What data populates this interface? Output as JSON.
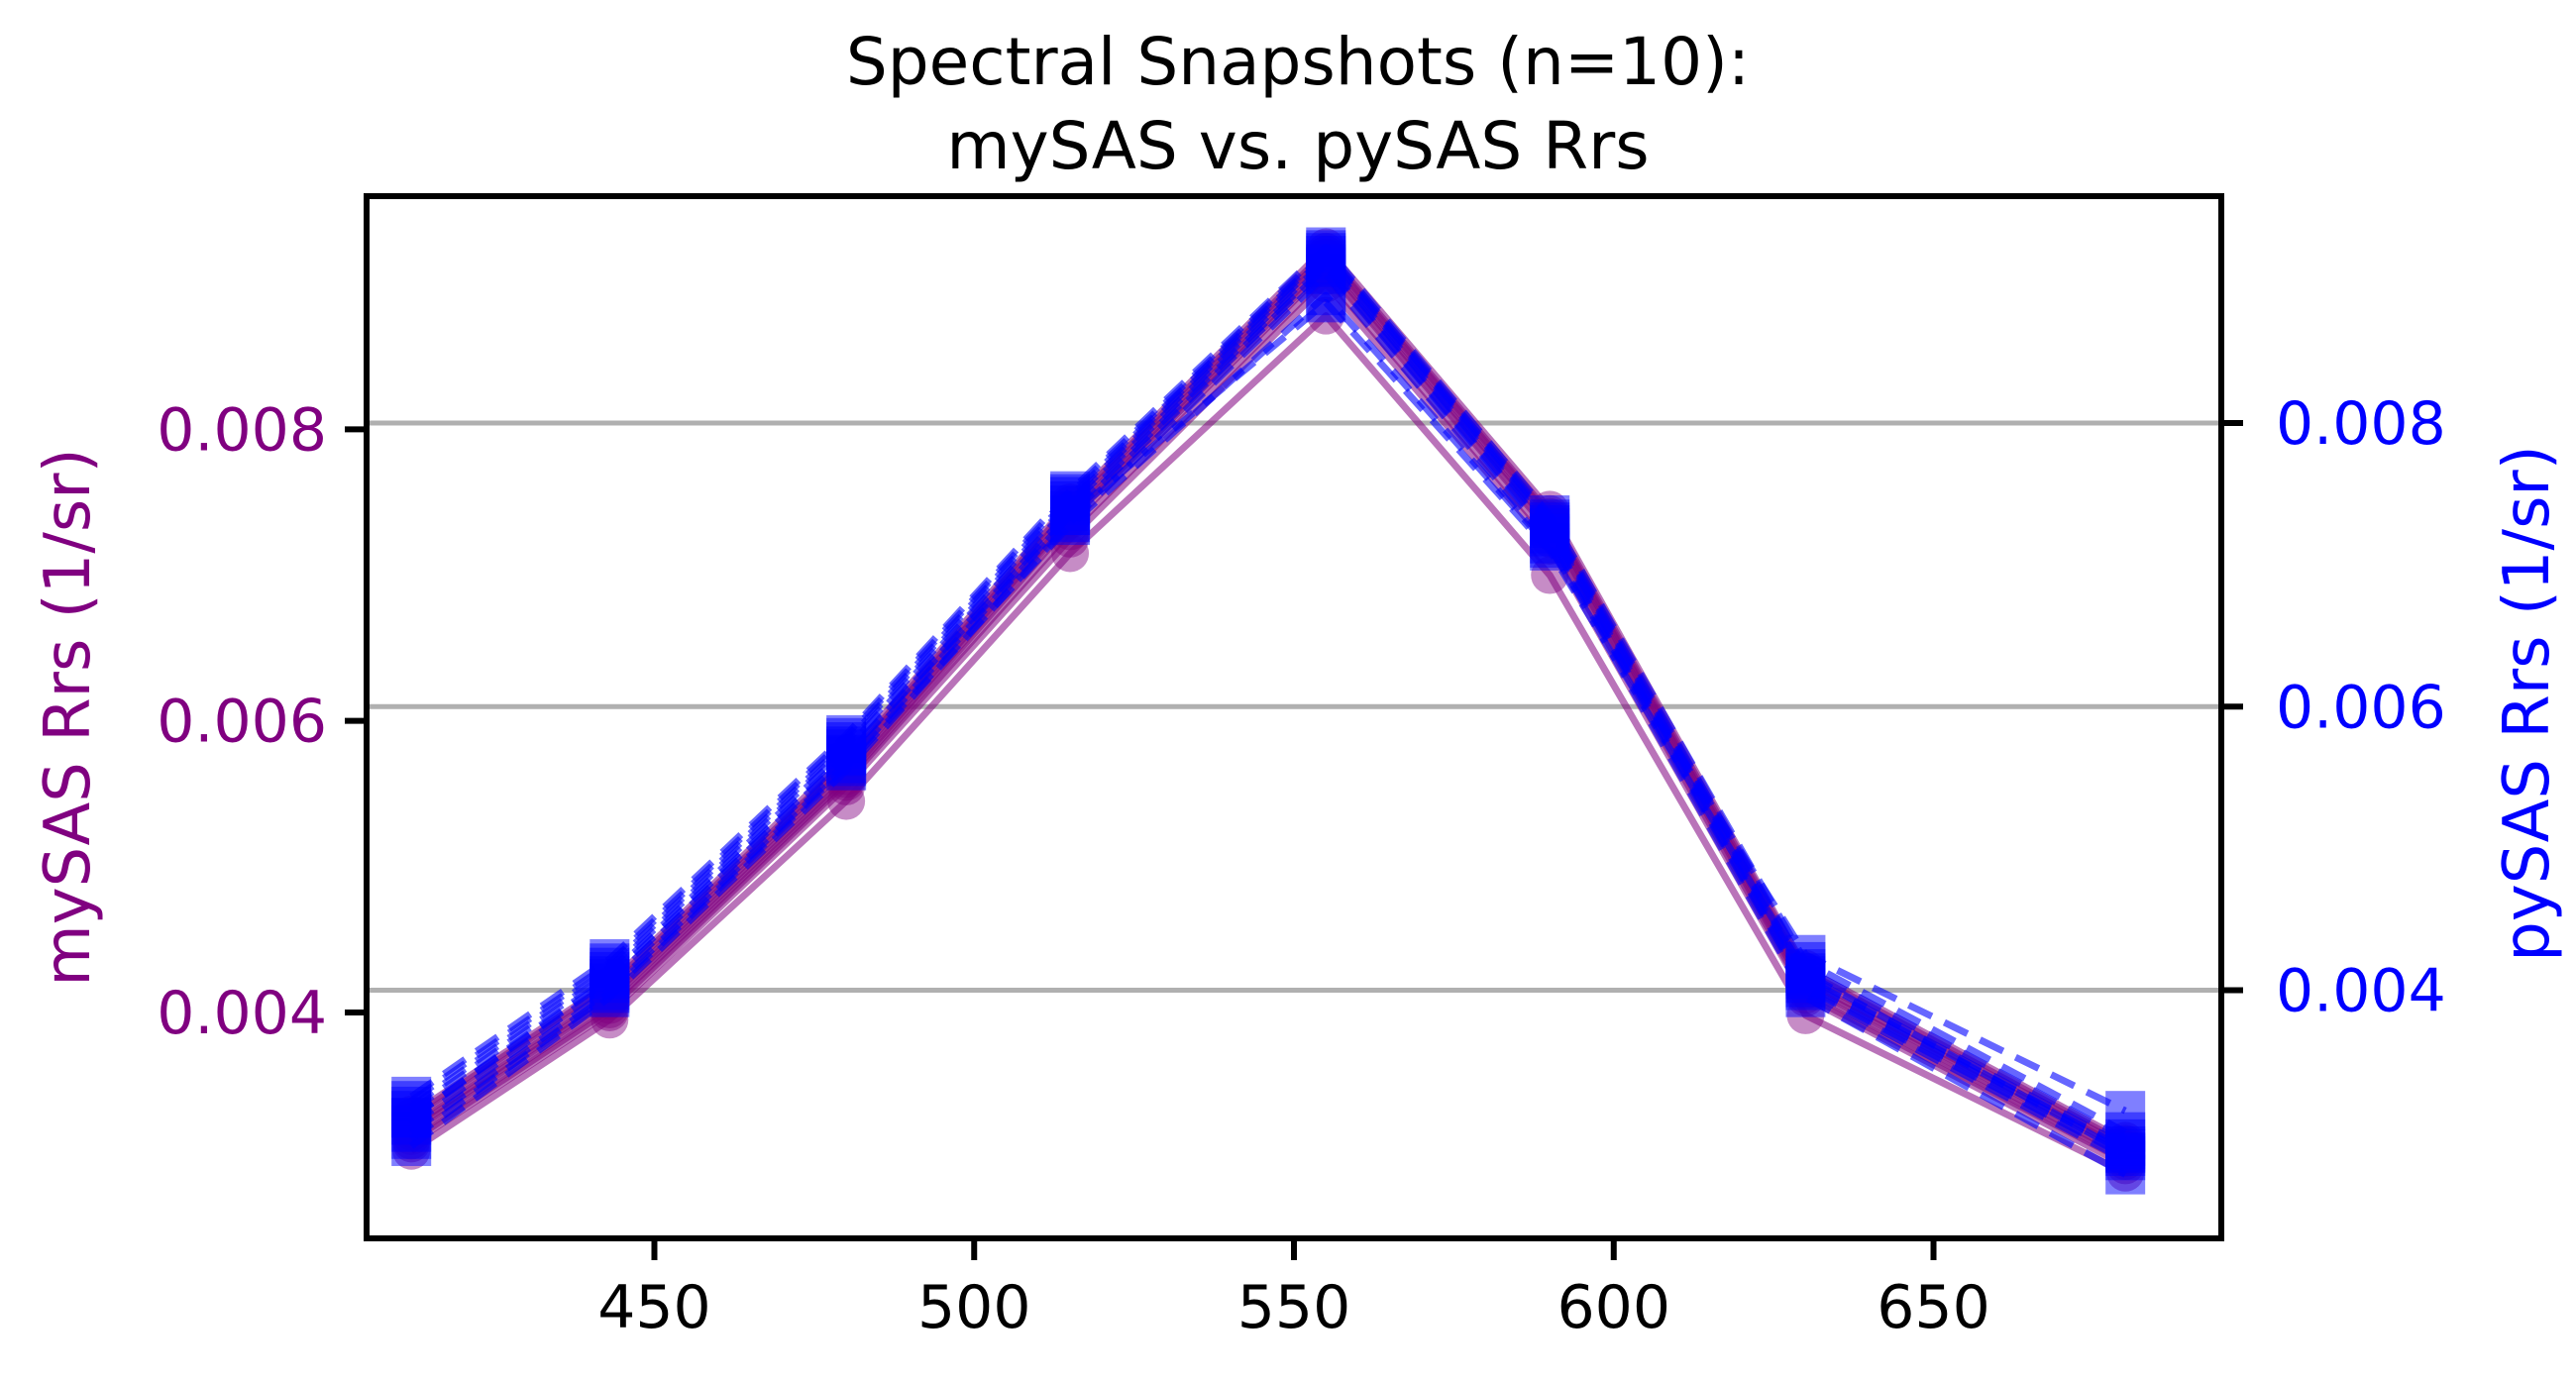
{
  "chart_data": {
    "type": "line",
    "title_line1": "Spectral Snapshots (n=10):",
    "title_line2": "mySAS vs. pySAS Rrs",
    "xlabel": "",
    "ylabel_left": "mySAS Rrs (1/sr)",
    "ylabel_right": "pySAS Rrs (1/sr)",
    "x": [
      412,
      443,
      480,
      515,
      555,
      590,
      630,
      680
    ],
    "xlim": [
      405,
      695
    ],
    "x_ticks": [
      450,
      500,
      550,
      600,
      650
    ],
    "x_tick_labels": [
      "450",
      "500",
      "550",
      "600",
      "650"
    ],
    "left_axis": {
      "ylim": [
        0.00245,
        0.0096
      ],
      "ticks": [
        0.004,
        0.006,
        0.008
      ],
      "tick_labels": [
        "0.004",
        "0.006",
        "0.008"
      ],
      "color": "#800080",
      "grid": false
    },
    "right_axis": {
      "ylim": [
        0.00225,
        0.0096
      ],
      "ticks": [
        0.004,
        0.006,
        0.008
      ],
      "tick_labels": [
        "0.004",
        "0.006",
        "0.008"
      ],
      "color": "#0000ff",
      "grid": true
    },
    "mysas_series": [
      {
        "values": [
          0.0031,
          0.004,
          0.00555,
          0.00725,
          0.009,
          0.0072,
          0.0041,
          0.00295
        ]
      },
      {
        "values": [
          0.00305,
          0.00395,
          0.00545,
          0.00715,
          0.00878,
          0.007,
          0.00398,
          0.0029
        ]
      },
      {
        "values": [
          0.00315,
          0.00405,
          0.0056,
          0.00735,
          0.0091,
          0.0073,
          0.00415,
          0.003
        ]
      },
      {
        "values": [
          0.0032,
          0.0041,
          0.00565,
          0.0074,
          0.00915,
          0.00735,
          0.0042,
          0.00305
        ]
      },
      {
        "values": [
          0.00325,
          0.00415,
          0.0057,
          0.00745,
          0.0092,
          0.0074,
          0.00425,
          0.00308
        ]
      },
      {
        "values": [
          0.00318,
          0.00408,
          0.00562,
          0.00738,
          0.00912,
          0.00732,
          0.00418,
          0.00302
        ]
      },
      {
        "values": [
          0.00322,
          0.00412,
          0.00568,
          0.00742,
          0.00918,
          0.00738,
          0.00422,
          0.00306
        ]
      },
      {
        "values": [
          0.00312,
          0.00402,
          0.00558,
          0.0073,
          0.00905,
          0.00725,
          0.00412,
          0.00298
        ]
      },
      {
        "values": [
          0.00328,
          0.00418,
          0.00572,
          0.00748,
          0.00922,
          0.00742,
          0.00428,
          0.0031
        ]
      },
      {
        "values": [
          0.0033,
          0.0042,
          0.00575,
          0.0075,
          0.00925,
          0.00745,
          0.0043,
          0.00312
        ]
      }
    ],
    "pysas_series": [
      {
        "values": [
          0.0029,
          0.00395,
          0.00555,
          0.0073,
          0.00905,
          0.00715,
          0.00395,
          0.0027
        ]
      },
      {
        "values": [
          0.003,
          0.004,
          0.0056,
          0.00735,
          0.0091,
          0.0072,
          0.004,
          0.0028
        ]
      },
      {
        "values": [
          0.00305,
          0.00405,
          0.00565,
          0.00738,
          0.00912,
          0.00722,
          0.00402,
          0.00283
        ]
      },
      {
        "values": [
          0.0031,
          0.0041,
          0.0057,
          0.00742,
          0.00915,
          0.00726,
          0.00405,
          0.00286
        ]
      },
      {
        "values": [
          0.00315,
          0.00413,
          0.00572,
          0.00745,
          0.00918,
          0.00728,
          0.00408,
          0.00288
        ]
      },
      {
        "values": [
          0.00318,
          0.00416,
          0.00575,
          0.00748,
          0.0092,
          0.0073,
          0.0041,
          0.0029
        ]
      },
      {
        "values": [
          0.00322,
          0.00419,
          0.00578,
          0.0075,
          0.00922,
          0.00732,
          0.00415,
          0.00295
        ]
      },
      {
        "values": [
          0.00325,
          0.00422,
          0.0058,
          0.00752,
          0.00924,
          0.00735,
          0.0042,
          0.003
        ]
      },
      {
        "values": [
          0.0031,
          0.00408,
          0.00566,
          0.00735,
          0.00885,
          0.0071,
          0.00412,
          0.00285
        ]
      },
      {
        "values": [
          0.00295,
          0.00398,
          0.00558,
          0.00728,
          0.0089,
          0.00712,
          0.00425,
          0.00315
        ]
      }
    ]
  }
}
